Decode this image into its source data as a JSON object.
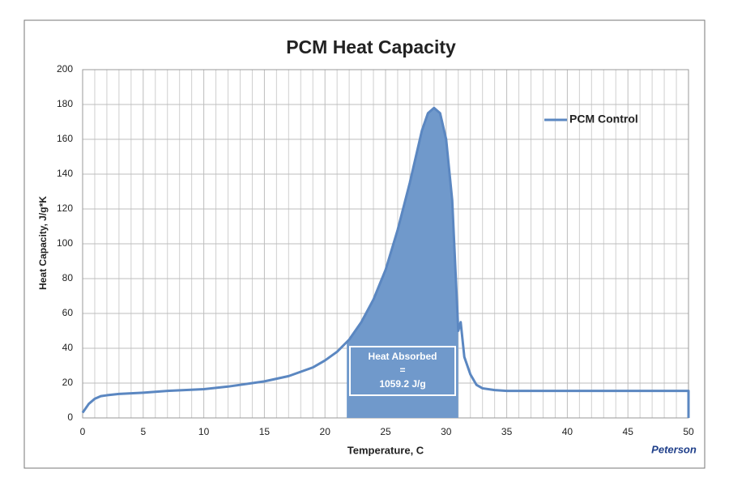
{
  "chart_data": {
    "type": "line",
    "title": "PCM Heat Capacity",
    "xlabel": "Temperature, C",
    "ylabel": "Heat Capacity, J/g*K",
    "xlim": [
      0,
      50
    ],
    "ylim": [
      0,
      200
    ],
    "xticks": [
      0,
      5,
      10,
      15,
      20,
      25,
      30,
      35,
      40,
      45,
      50
    ],
    "yticks": [
      0,
      20,
      40,
      60,
      80,
      100,
      120,
      140,
      160,
      180,
      200
    ],
    "minor_xticks": [
      1,
      2,
      3,
      4,
      6,
      7,
      8,
      9,
      11,
      12,
      13,
      14,
      16,
      17,
      18,
      19,
      21,
      22,
      23,
      24,
      26,
      27,
      28,
      29,
      31,
      32,
      33,
      34,
      36,
      37,
      38,
      39,
      41,
      42,
      43,
      44,
      46,
      47,
      48,
      49
    ],
    "grid": true,
    "legend": "upper right",
    "x": [
      0,
      0.5,
      1,
      1.5,
      2,
      3,
      5,
      7,
      10,
      12,
      15,
      17,
      19,
      20,
      21,
      22,
      23,
      24,
      25,
      26,
      27,
      28,
      28.5,
      29,
      29.5,
      30,
      30.5,
      31,
      31.2,
      31.5,
      32,
      32.5,
      33,
      34,
      35,
      40,
      45,
      50,
      50
    ],
    "series": [
      {
        "name": "PCM Control",
        "color": "#5b87c1",
        "values": [
          3,
          8,
          11,
          12.5,
          13,
          13.8,
          14.5,
          15.5,
          16.5,
          18,
          21,
          24,
          29,
          33,
          38,
          45,
          55,
          68,
          85,
          108,
          135,
          165,
          175,
          178,
          175,
          160,
          125,
          50,
          55,
          35,
          25,
          19,
          17,
          16,
          15.5,
          15.5,
          15.5,
          15.5,
          0
        ]
      }
    ],
    "shaded_range": [
      21.8,
      31
    ],
    "shade_color": "#7099cb",
    "annotation": [
      "Heat Absorbed",
      "=",
      "1059.2 J/g"
    ],
    "logo": "Peterson"
  }
}
